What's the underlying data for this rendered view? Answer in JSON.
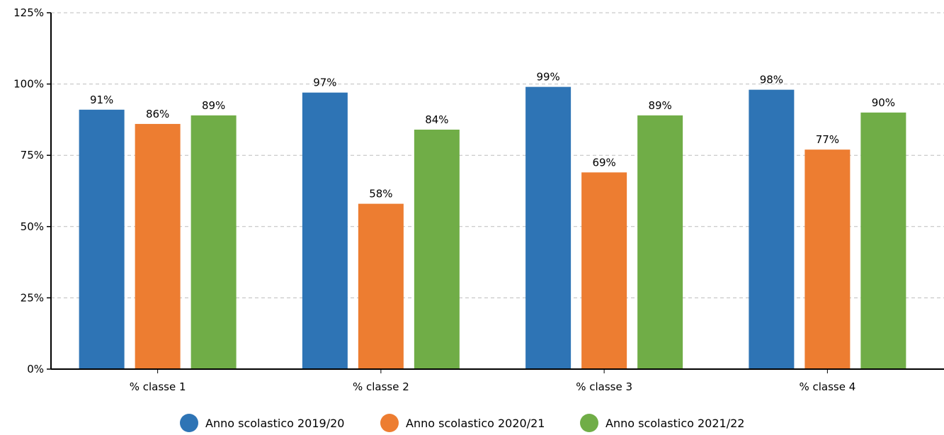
{
  "chart_data": {
    "type": "bar",
    "categories": [
      "% classe 1",
      "% classe 2",
      "% classe 3",
      "% classe 4"
    ],
    "series": [
      {
        "name": "Anno scolastico 2019/20",
        "color": "#2e74b5",
        "values": [
          91,
          97,
          99,
          98
        ],
        "labels": [
          "91%",
          "97%",
          "99%",
          "98%"
        ]
      },
      {
        "name": "Anno scolastico 2020/21",
        "color": "#ed7d31",
        "values": [
          86,
          58,
          69,
          77
        ],
        "labels": [
          "86%",
          "58%",
          "69%",
          "77%"
        ]
      },
      {
        "name": "Anno scolastico 2021/22",
        "color": "#70ad47",
        "values": [
          89,
          84,
          89,
          90
        ],
        "labels": [
          "89%",
          "84%",
          "89%",
          "90%"
        ]
      }
    ],
    "ylim": [
      0,
      125
    ],
    "yticks": [
      0,
      25,
      50,
      75,
      100,
      125
    ],
    "ytick_labels": [
      "0%",
      "25%",
      "50%",
      "75%",
      "100%",
      "125%"
    ],
    "grid": true,
    "legend_position": "bottom"
  }
}
